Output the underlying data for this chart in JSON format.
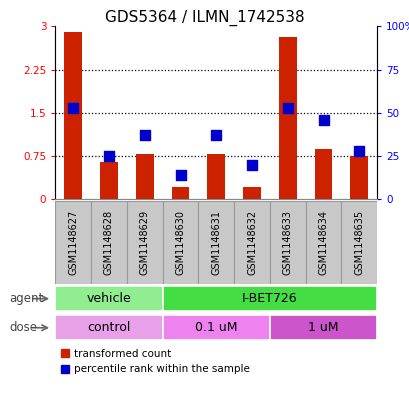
{
  "title": "GDS5364 / ILMN_1742538",
  "samples": [
    "GSM1148627",
    "GSM1148628",
    "GSM1148629",
    "GSM1148630",
    "GSM1148631",
    "GSM1148632",
    "GSM1148633",
    "GSM1148634",
    "GSM1148635"
  ],
  "red_values": [
    2.9,
    0.65,
    0.78,
    0.22,
    0.78,
    0.22,
    2.82,
    0.88,
    0.75
  ],
  "blue_values": [
    53,
    25,
    37,
    14,
    37,
    20,
    53,
    46,
    28
  ],
  "ylim_left": [
    0,
    3
  ],
  "ylim_right": [
    0,
    100
  ],
  "yticks_left": [
    0,
    0.75,
    1.5,
    2.25,
    3
  ],
  "yticks_left_labels": [
    "0",
    "0.75",
    "1.5",
    "2.25",
    "3"
  ],
  "yticks_right": [
    0,
    25,
    50,
    75,
    100
  ],
  "yticks_right_labels": [
    "0",
    "25",
    "50",
    "75",
    "100%"
  ],
  "hlines": [
    0.75,
    1.5,
    2.25
  ],
  "agent_groups": [
    {
      "label": "vehicle",
      "start": 0,
      "end": 3,
      "color": "#90EE90"
    },
    {
      "label": "I-BET726",
      "start": 3,
      "end": 9,
      "color": "#44DD44"
    }
  ],
  "dose_groups": [
    {
      "label": "control",
      "start": 0,
      "end": 3,
      "color": "#E8A0E8"
    },
    {
      "label": "0.1 uM",
      "start": 3,
      "end": 6,
      "color": "#EE82EE"
    },
    {
      "label": "1 uM",
      "start": 6,
      "end": 9,
      "color": "#CC55CC"
    }
  ],
  "red_color": "#CC2200",
  "blue_color": "#0000CC",
  "bar_width": 0.5,
  "blue_marker_size": 55,
  "legend_red": "transformed count",
  "legend_blue": "percentile rank within the sample",
  "agent_label": "agent",
  "dose_label": "dose",
  "title_fontsize": 11,
  "tick_fontsize": 7.5,
  "xtick_fontsize": 7,
  "label_fontsize": 8.5,
  "band_fontsize": 9,
  "background_color": "#ffffff",
  "sample_bg": "#C8C8C8",
  "sample_border": "#999999"
}
